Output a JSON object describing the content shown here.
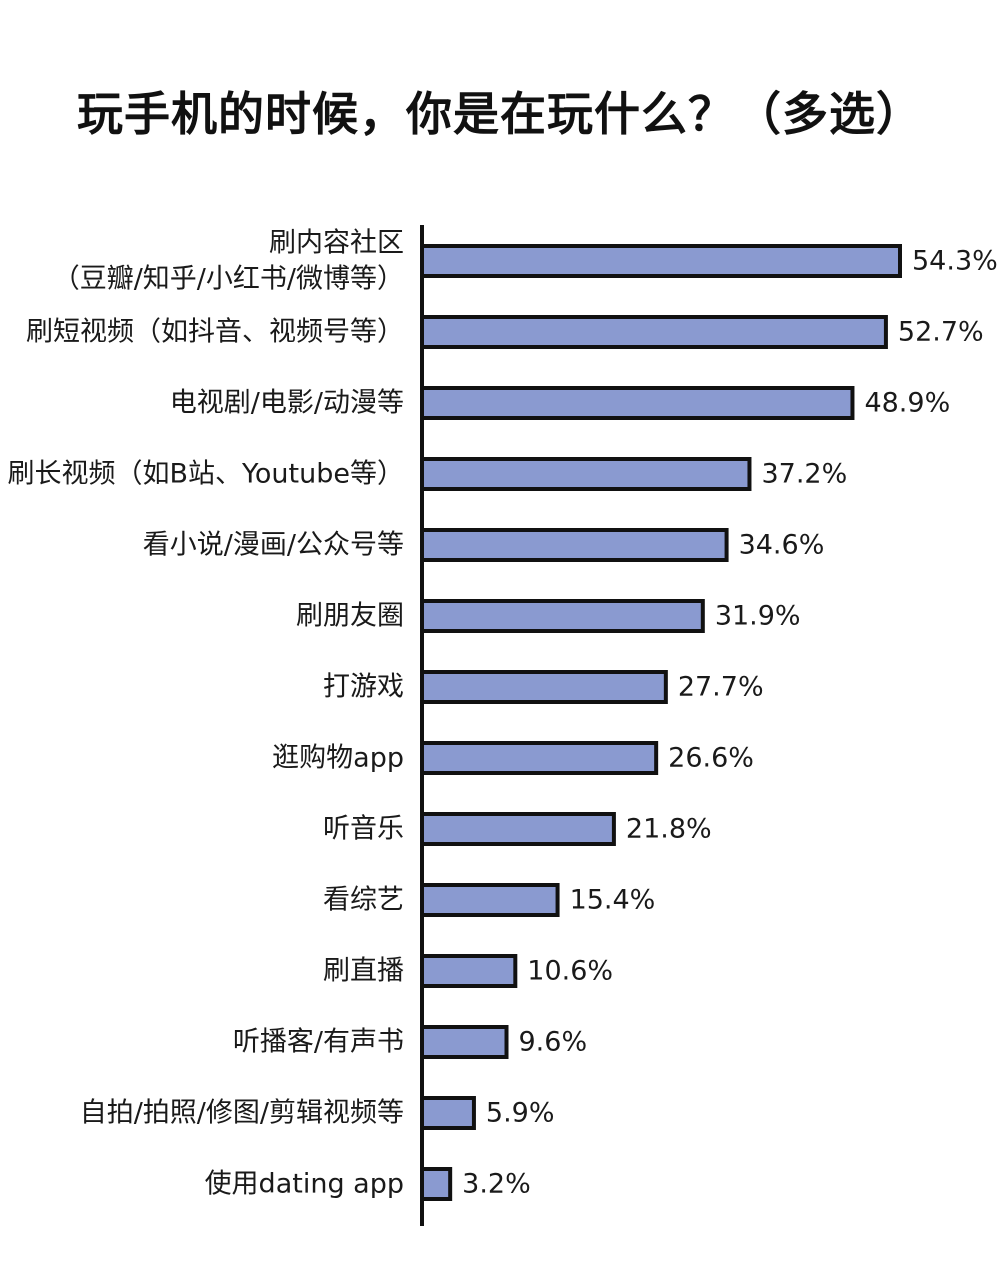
{
  "chart_data": {
    "type": "bar",
    "orientation": "horizontal",
    "title": "玩手机的时候，你是在玩什么？（多选）",
    "categories": [
      [
        "刷内容社区",
        "（豆瓣/知乎/小红书/微博等）"
      ],
      [
        "刷短视频（如抖音、视频号等）"
      ],
      [
        "电视剧/电影/动漫等"
      ],
      [
        "刷长视频（如B站、Youtube等）"
      ],
      [
        "看小说/漫画/公众号等"
      ],
      [
        "刷朋友圈"
      ],
      [
        "打游戏"
      ],
      [
        "逛购物app"
      ],
      [
        "听音乐"
      ],
      [
        "看综艺"
      ],
      [
        "刷直播"
      ],
      [
        "听播客/有声书"
      ],
      [
        "自拍/拍照/修图/剪辑视频等"
      ],
      [
        "使用dating app"
      ]
    ],
    "values": [
      54.3,
      52.7,
      48.9,
      37.2,
      34.6,
      31.9,
      27.7,
      26.6,
      21.8,
      15.4,
      10.6,
      9.6,
      5.9,
      3.2
    ],
    "value_labels": [
      "54.3%",
      "52.7%",
      "48.9%",
      "37.2%",
      "34.6%",
      "31.9%",
      "27.7%",
      "26.6%",
      "21.8%",
      "15.4%",
      "10.6%",
      "9.6%",
      "5.9%",
      "3.2%"
    ],
    "unit": "%",
    "xlim": [
      0,
      60
    ],
    "grid": false,
    "legend": "none",
    "bar_color": "#8a9ad0",
    "bar_border_color": "#111111"
  }
}
